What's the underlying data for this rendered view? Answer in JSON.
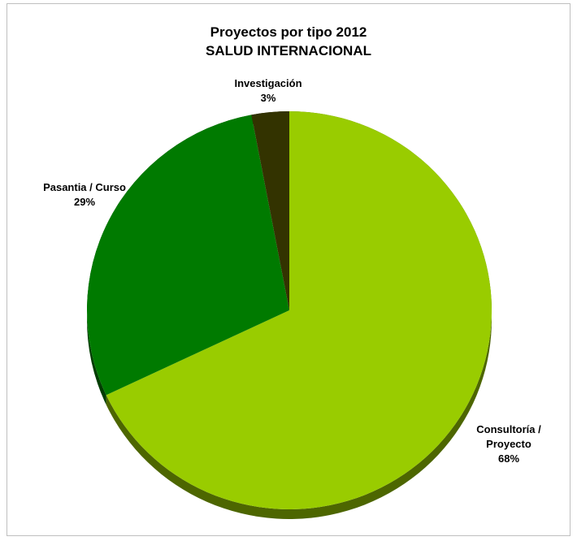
{
  "chart_data": {
    "type": "pie",
    "title": "Proyectos por tipo 2012",
    "subtitle": "SALUD INTERNACIONAL",
    "categories": [
      "Consultoría / Proyecto",
      "Pasantia / Curso",
      "Investigación"
    ],
    "values": [
      68,
      29,
      3
    ],
    "unit": "%",
    "value_labels": [
      "68%",
      "29%",
      "3%"
    ],
    "colors": [
      "#99cc00",
      "#007a00",
      "#333300"
    ],
    "shadow_colors": [
      "#4d6600",
      "#003d00",
      "#1a1a00"
    ],
    "style": "3d-tilted",
    "legend": "none"
  }
}
